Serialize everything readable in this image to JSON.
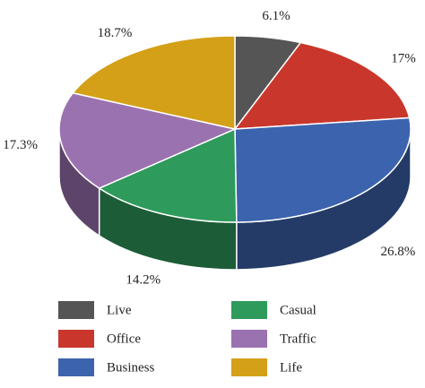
{
  "chart_data": {
    "type": "pie3d",
    "categories": [
      "Live",
      "Office",
      "Business",
      "Casual",
      "Traffic",
      "Life"
    ],
    "values": [
      6.1,
      17,
      26.8,
      14.2,
      17.3,
      18.7
    ],
    "value_labels": [
      "6.1%",
      "17%",
      "26.8%",
      "14.2%",
      "17.3%",
      "18.7%"
    ],
    "colors": [
      "#555555",
      "#c9372c",
      "#3c63ae",
      "#2e9a5c",
      "#9b72b0",
      "#d4a017"
    ]
  }
}
